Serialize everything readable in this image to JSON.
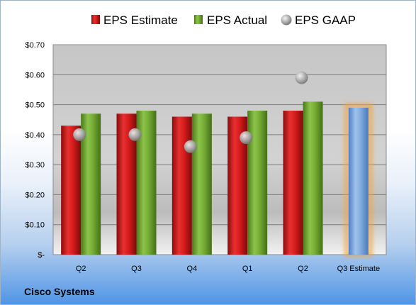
{
  "company": "Cisco Systems",
  "chart_data": {
    "type": "bar",
    "categories": [
      "Q2",
      "Q3",
      "Q4",
      "Q1",
      "Q2",
      "Q3 Estimate"
    ],
    "series": [
      {
        "name": "EPS Estimate",
        "type": "bar",
        "color": "#d01818",
        "values": [
          0.43,
          0.47,
          0.46,
          0.46,
          0.48,
          null
        ]
      },
      {
        "name": "EPS Actual",
        "type": "bar",
        "color": "#6aa22a",
        "values": [
          0.47,
          0.48,
          0.47,
          0.48,
          0.51,
          null
        ]
      },
      {
        "name": "EPS GAAP",
        "type": "scatter",
        "color": "#a9a9a9",
        "values": [
          0.4,
          0.4,
          0.36,
          0.39,
          0.59,
          null
        ]
      },
      {
        "type": "bar",
        "color": "#6f9fd8",
        "highlight": "#f5a540",
        "values": [
          null,
          null,
          null,
          null,
          null,
          0.49
        ]
      }
    ],
    "yticks": [
      "$-",
      "$0.10",
      "$0.20",
      "$0.30",
      "$0.40",
      "$0.50",
      "$0.60",
      "$0.70"
    ],
    "ylim": [
      0,
      0.7
    ],
    "grid": true,
    "legend": "top"
  }
}
